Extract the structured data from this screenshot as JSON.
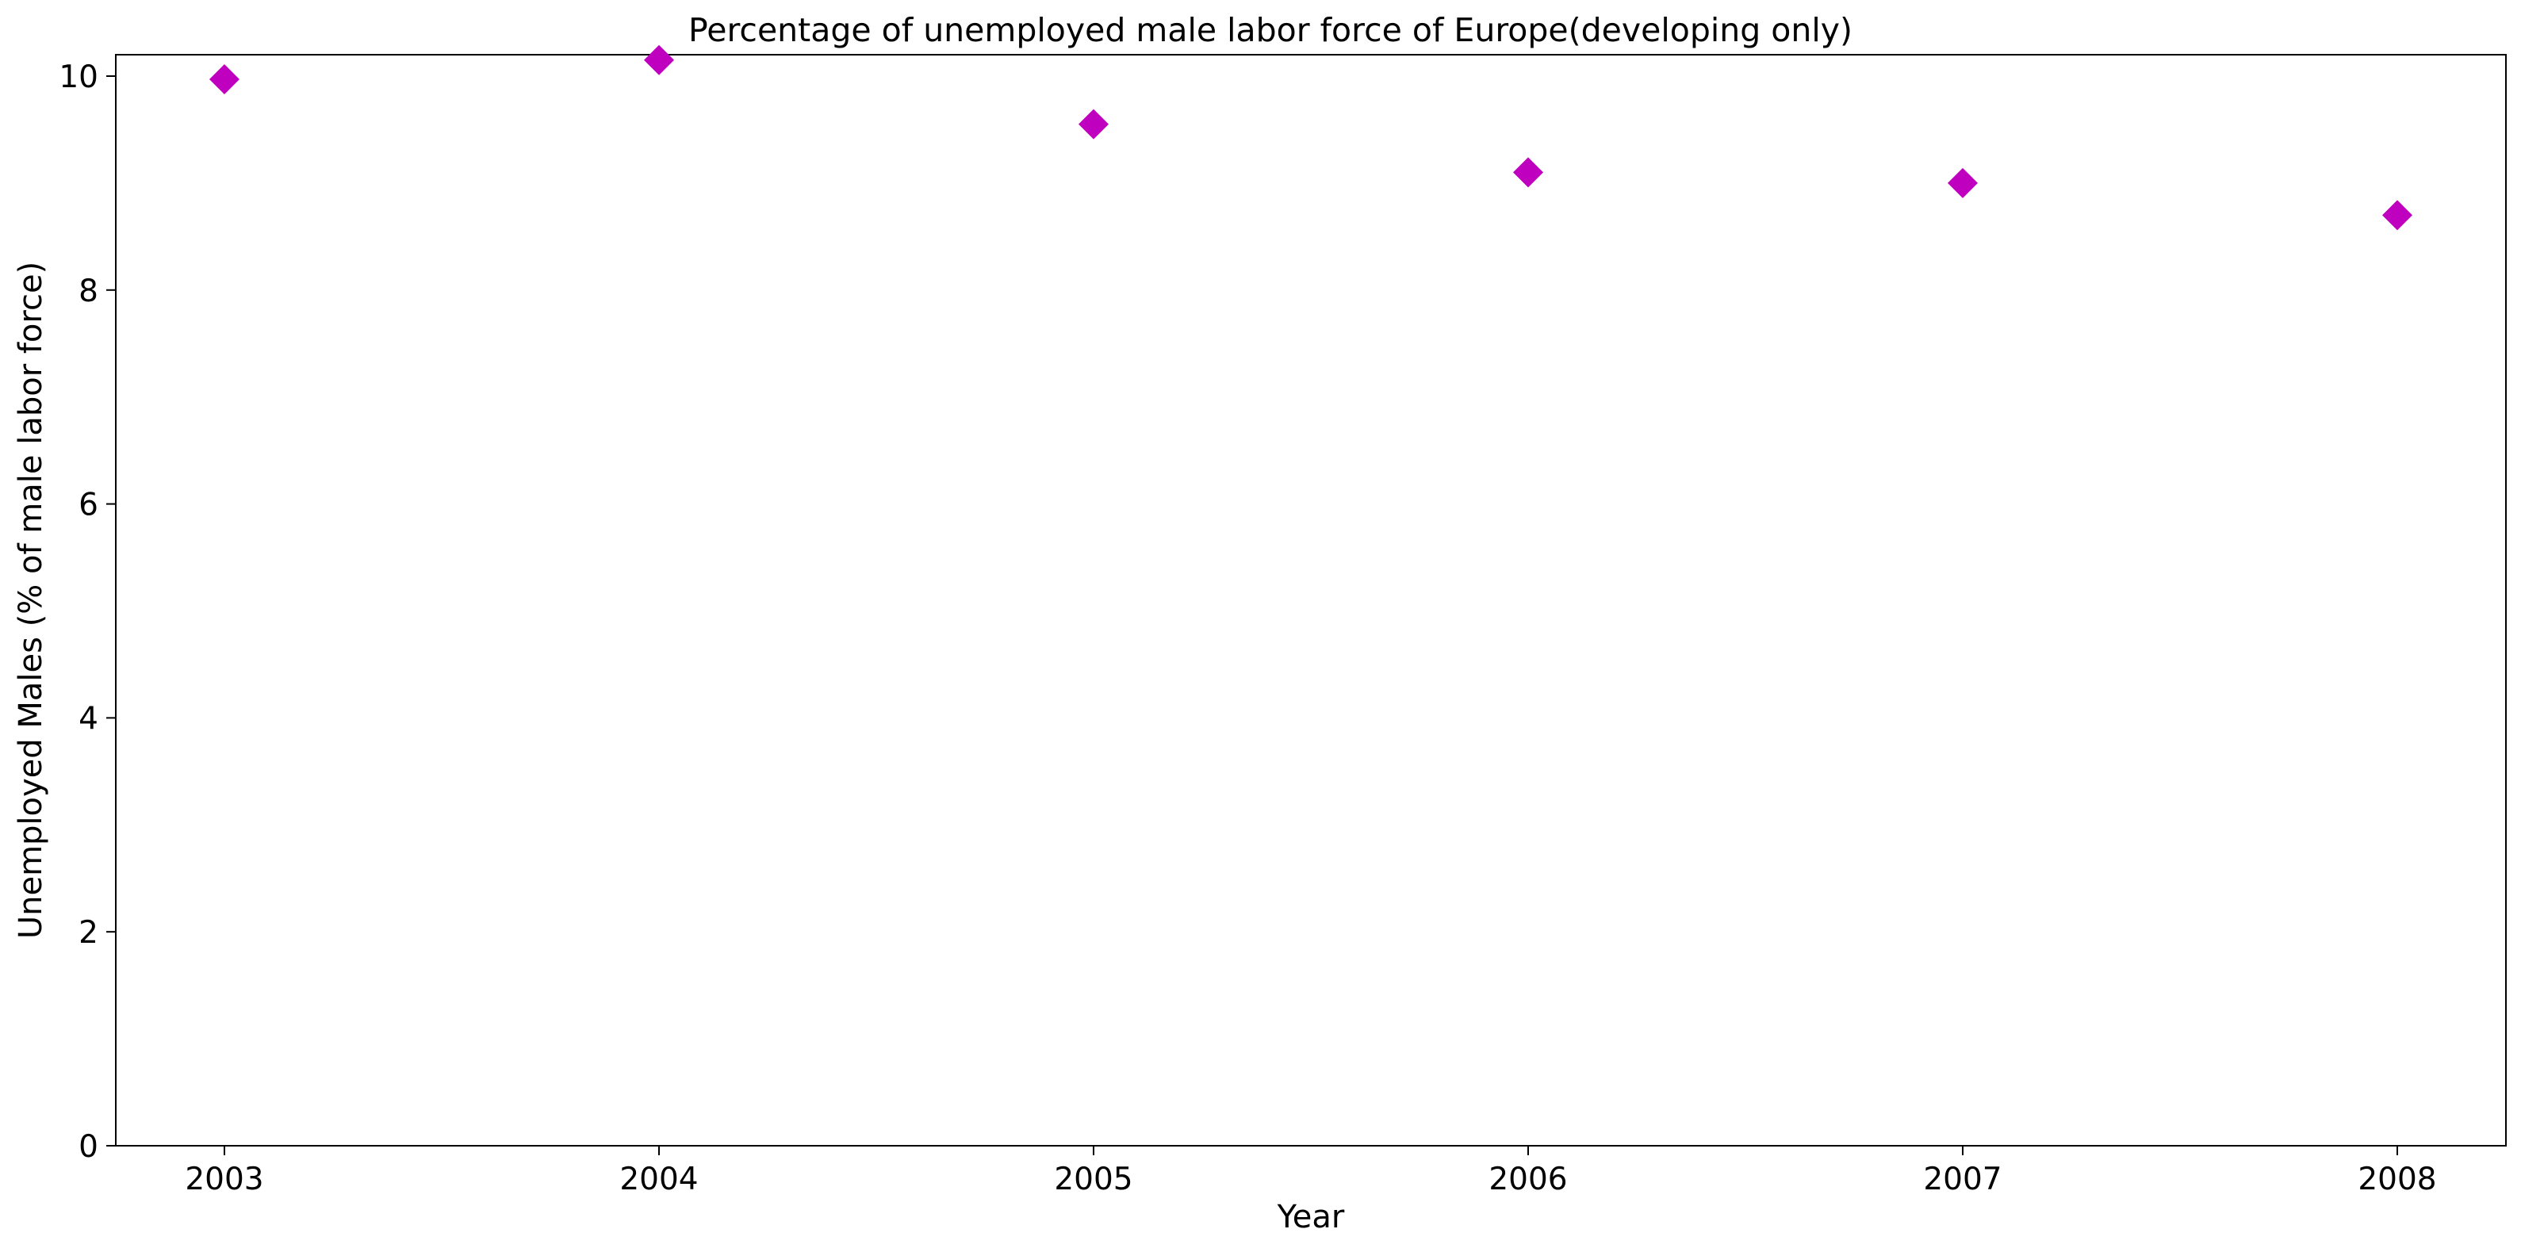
{
  "chart_data": {
    "type": "scatter",
    "title": "Percentage of unemployed male labor force of Europe(developing only)",
    "xlabel": "Year",
    "ylabel": "Unemployed Males (% of male labor force)",
    "x": [
      "2003",
      "2004",
      "2005",
      "2006",
      "2007",
      "2008"
    ],
    "series": [
      {
        "values": [
          9.97,
          10.15,
          9.55,
          9.1,
          9.0,
          8.7
        ],
        "color": "#bf00bf",
        "marker": "diamond"
      }
    ],
    "x_ticks": [
      "2003",
      "2004",
      "2005",
      "2006",
      "2007",
      "2008"
    ],
    "y_ticks": [
      "0",
      "2",
      "4",
      "6",
      "8",
      "10"
    ],
    "ylim": [
      0,
      10.2
    ],
    "grid": false,
    "legend": "none"
  }
}
